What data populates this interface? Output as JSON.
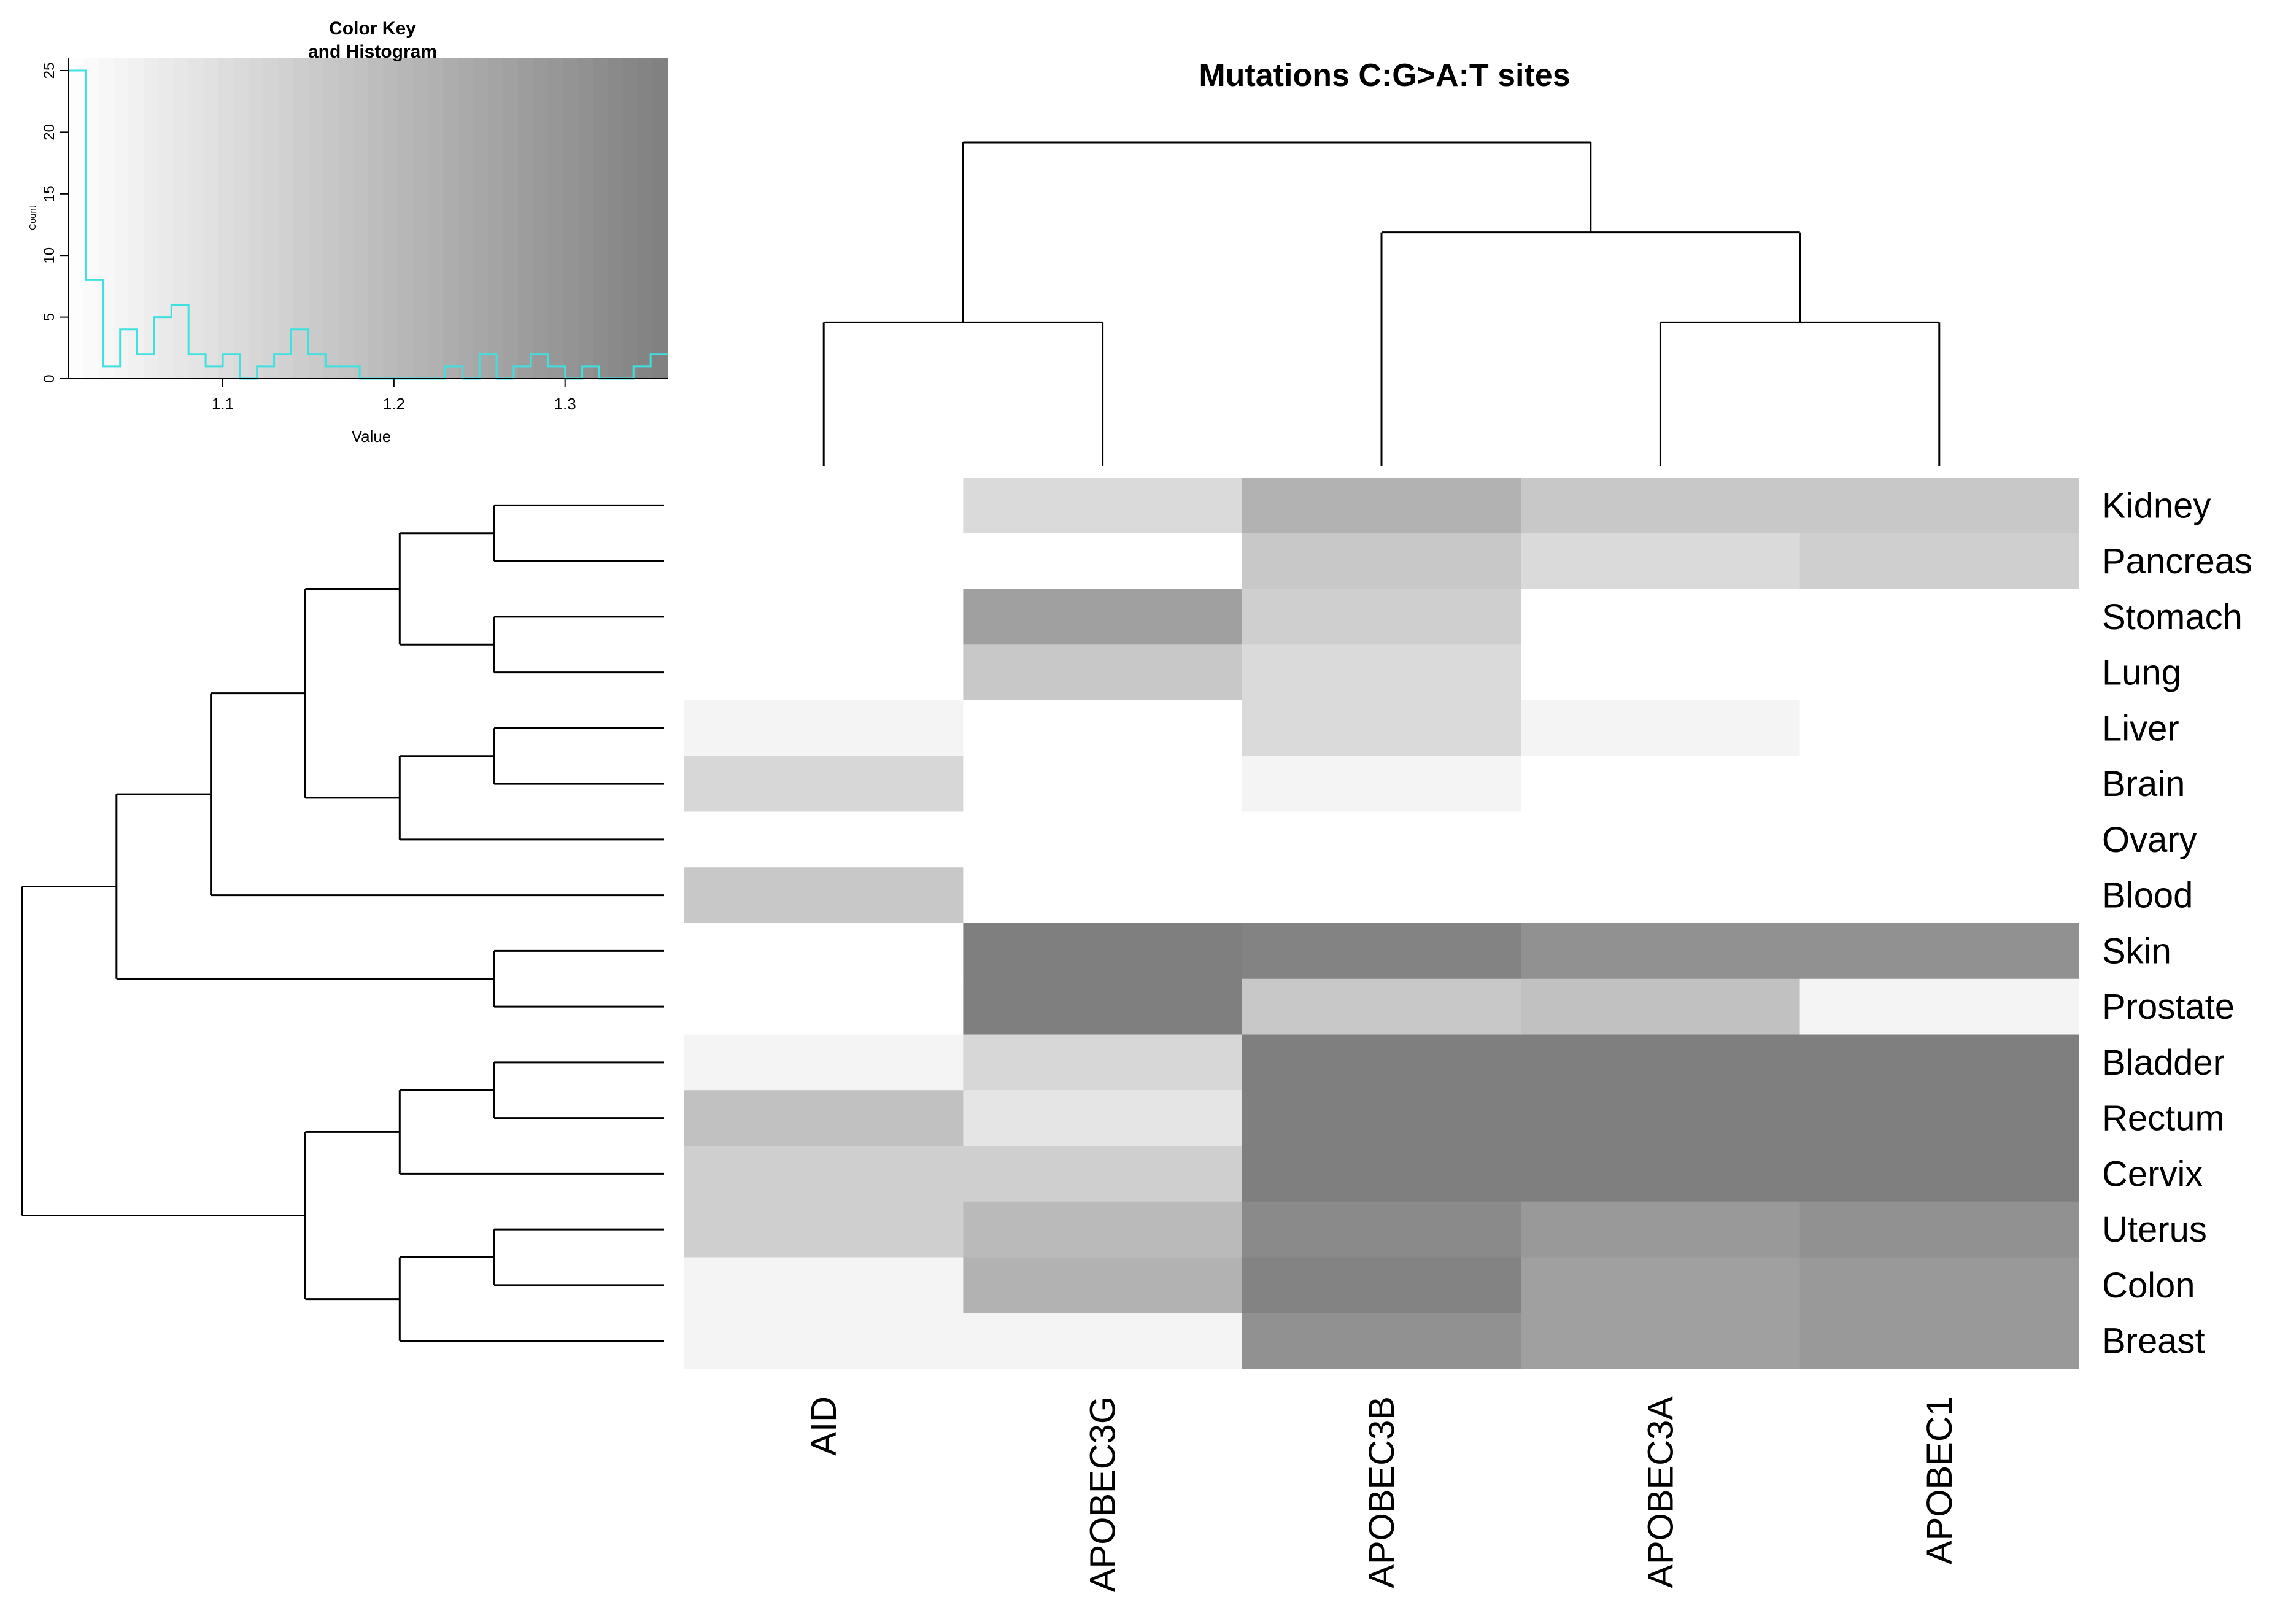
{
  "chart_data": [
    {
      "type": "heatmap",
      "title": "Mutations C:G>A:T sites",
      "columns": [
        "AID",
        "APOBEC3G",
        "APOBEC3B",
        "APOBEC3A",
        "APOBEC1"
      ],
      "rows": [
        "Kidney",
        "Pancreas",
        "Stomach",
        "Lung",
        "Liver",
        "Brain",
        "Ovary",
        "Blood",
        "Skin",
        "Prostate",
        "Bladder",
        "Rectum",
        "Cervix",
        "Uterus",
        "Colon",
        "Breast"
      ],
      "values": [
        [
          1.0,
          1.11,
          1.22,
          1.16,
          1.16
        ],
        [
          1.0,
          1.0,
          1.16,
          1.11,
          1.14
        ],
        [
          1.0,
          1.27,
          1.14,
          1.0,
          1.0
        ],
        [
          1.0,
          1.16,
          1.11,
          1.0,
          1.0
        ],
        [
          1.04,
          1.0,
          1.11,
          1.04,
          1.0
        ],
        [
          1.12,
          1.0,
          1.04,
          1.0,
          1.0
        ],
        [
          1.0,
          1.0,
          1.0,
          1.0,
          1.0
        ],
        [
          1.16,
          1.0,
          1.0,
          1.0,
          1.0
        ],
        [
          1.0,
          1.38,
          1.35,
          1.31,
          1.31
        ],
        [
          1.0,
          1.41,
          1.16,
          1.18,
          1.04
        ],
        [
          1.04,
          1.12,
          1.38,
          1.38,
          1.38
        ],
        [
          1.18,
          1.08,
          1.38,
          1.38,
          1.38
        ],
        [
          1.14,
          1.14,
          1.41,
          1.41,
          1.41
        ],
        [
          1.14,
          1.2,
          1.33,
          1.29,
          1.31
        ],
        [
          1.04,
          1.22,
          1.35,
          1.27,
          1.29
        ],
        [
          1.04,
          1.04,
          1.31,
          1.27,
          1.29
        ]
      ],
      "row_dendrogram": "((((((Kidney,Pancreas),(Stomach,Lung)),((Liver,Brain),Ovary)),Blood),(Skin,Prostate)),(((Bladder,Rectum),Cervix),((Uterus,Colon),Breast)))",
      "column_dendrogram": "((AID,APOBEC3G),(APOBEC3B,(APOBEC3A,APOBEC1)))",
      "color_low": "#ffffff",
      "color_high": "#7f7f7f"
    },
    {
      "type": "histogram",
      "title": "Color Key\nand Histogram",
      "xlabel": "Value",
      "ylabel": "Count",
      "xlim": [
        1.01,
        1.36
      ],
      "ylim": [
        0,
        25
      ],
      "x_ticks": [
        "1.1",
        "1.2",
        "1.3"
      ],
      "y_ticks": [
        "0",
        "5",
        "10",
        "15",
        "20",
        "25"
      ],
      "bin_width": 0.01,
      "counts": [
        25,
        8,
        1,
        4,
        2,
        5,
        6,
        2,
        1,
        2,
        0,
        1,
        2,
        4,
        2,
        1,
        1,
        0,
        0,
        0,
        0,
        0,
        1,
        0,
        2,
        0,
        1,
        2,
        1,
        0,
        1,
        0,
        0,
        1,
        2
      ],
      "line_color": "#3fe0e0",
      "color_low": "#ffffff",
      "color_high": "#7f7f7f"
    }
  ]
}
